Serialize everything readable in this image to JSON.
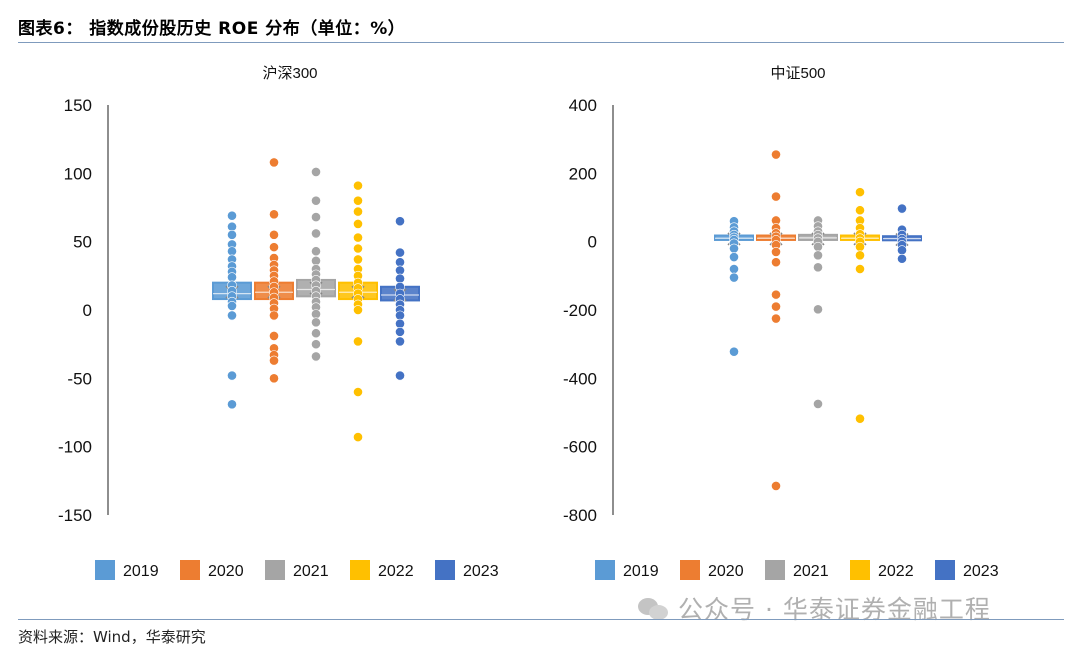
{
  "header": {
    "title": "图表6： 指数成份股历史 ROE 分布（单位：%）"
  },
  "footer": {
    "source": "资料来源：Wind，华泰研究",
    "watermark": "公众号 · 华泰证券金融工程"
  },
  "colors": {
    "2019": "#5b9bd5",
    "2020": "#ed7d31",
    "2021": "#a5a5a5",
    "2022": "#ffc000",
    "2023": "#4472c4",
    "mean_marker": "#888888"
  },
  "chart_data": [
    {
      "type": "boxplot",
      "title": "沪深300",
      "ylim": [
        -150,
        150
      ],
      "yticks": [
        150,
        100,
        50,
        0,
        -50,
        -100,
        -150
      ],
      "ytick_labels": [
        "150",
        "100",
        "50",
        "0",
        "-50",
        "-100",
        "-150"
      ],
      "legend": [
        "2019",
        "2020",
        "2021",
        "2022",
        "2023"
      ],
      "legend_position": "bottom",
      "grid": false,
      "series": [
        {
          "name": "2019",
          "q1": 8,
          "median": 12,
          "q3": 20,
          "mean": 13,
          "points": [
            69,
            61,
            55,
            48,
            43,
            37,
            32,
            28,
            24,
            18,
            14,
            10,
            6,
            3,
            -4,
            -48,
            -69
          ]
        },
        {
          "name": "2020",
          "q1": 8,
          "median": 13,
          "q3": 20,
          "mean": 13,
          "points": [
            108,
            70,
            55,
            46,
            38,
            33,
            29,
            25,
            21,
            17,
            13,
            9,
            5,
            1,
            -4,
            -19,
            -28,
            -33,
            -37,
            -50
          ]
        },
        {
          "name": "2021",
          "q1": 10,
          "median": 15,
          "q3": 22,
          "mean": 16,
          "points": [
            101,
            80,
            68,
            56,
            43,
            36,
            30,
            26,
            22,
            18,
            14,
            10,
            6,
            2,
            -3,
            -9,
            -17,
            -25,
            -34
          ]
        },
        {
          "name": "2022",
          "q1": 8,
          "median": 13,
          "q3": 20,
          "mean": 13,
          "points": [
            91,
            80,
            72,
            63,
            53,
            45,
            37,
            30,
            25,
            20,
            16,
            12,
            8,
            4,
            0,
            -23,
            -60,
            -93
          ]
        },
        {
          "name": "2023",
          "q1": 7,
          "median": 11,
          "q3": 17,
          "mean": 11,
          "points": [
            65,
            42,
            35,
            29,
            23,
            17,
            12,
            8,
            4,
            0,
            -4,
            -10,
            -16,
            -23,
            -48
          ]
        }
      ]
    },
    {
      "type": "boxplot",
      "title": "中证500",
      "ylim": [
        -800,
        400
      ],
      "yticks": [
        400,
        200,
        0,
        -200,
        -400,
        -600,
        -800
      ],
      "ytick_labels": [
        "400",
        "200",
        "0",
        "-200",
        "-400",
        "-600",
        "-800"
      ],
      "legend": [
        "2019",
        "2020",
        "2021",
        "2022",
        "2023"
      ],
      "legend_position": "bottom",
      "grid": false,
      "series": [
        {
          "name": "2019",
          "q1": 5,
          "median": 10,
          "q3": 18,
          "mean": 8,
          "points": [
            60,
            42,
            30,
            20,
            12,
            5,
            -5,
            -20,
            -45,
            -80,
            -105,
            -322
          ]
        },
        {
          "name": "2020",
          "q1": 5,
          "median": 10,
          "q3": 18,
          "mean": 8,
          "points": [
            255,
            132,
            62,
            40,
            25,
            15,
            5,
            -10,
            -30,
            -60,
            -155,
            -190,
            -225,
            -715
          ]
        },
        {
          "name": "2021",
          "q1": 5,
          "median": 11,
          "q3": 20,
          "mean": 8,
          "points": [
            62,
            45,
            30,
            20,
            10,
            0,
            -15,
            -40,
            -75,
            -198,
            -475
          ]
        },
        {
          "name": "2022",
          "q1": 5,
          "median": 10,
          "q3": 18,
          "mean": 8,
          "points": [
            145,
            92,
            62,
            40,
            22,
            10,
            0,
            -15,
            -40,
            -80,
            -518
          ]
        },
        {
          "name": "2023",
          "q1": 4,
          "median": 9,
          "q3": 16,
          "mean": 6,
          "points": [
            97,
            35,
            20,
            8,
            0,
            -10,
            -25,
            -50
          ]
        }
      ]
    }
  ]
}
